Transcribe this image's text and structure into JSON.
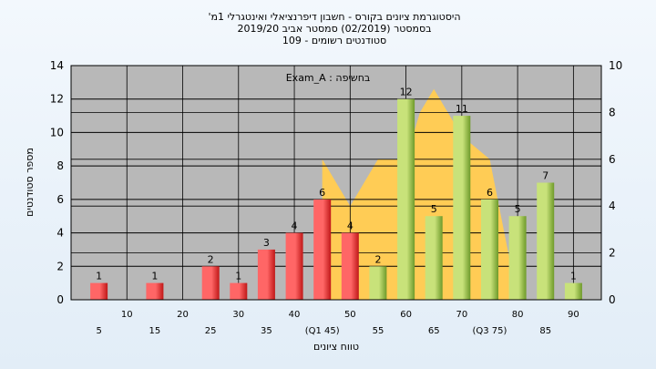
{
  "colors": {
    "plot_bg": "#b8b8b8",
    "grid": "#000000",
    "area_fill": "#ffcc55",
    "red_bar_light": "#ff6666",
    "red_bar_dark": "#c01818",
    "green_bar_light": "#c8e27a",
    "green_bar_dark": "#6e9a2a"
  },
  "chart_data": {
    "type": "bar",
    "title_lines": [
      "היסטוגרמת ציונים בקורס - חשבון דיפרנציאלי ואינטגרלי 1מ'",
      "בסמסטר  (02/2019)  סמסטר אביב 2019/20",
      "סטודנטים רשומים - 109"
    ],
    "annotation": "בחשיפה : Exam_A",
    "xlabel": "טווח ציונים",
    "ylabel": "מספר סטודנטים",
    "ylim": [
      0,
      14
    ],
    "yticks": [
      0,
      2,
      4,
      6,
      8,
      10,
      12,
      14
    ],
    "y2lim": [
      0,
      10
    ],
    "y2ticks": [
      0,
      2,
      4,
      6,
      8,
      10
    ],
    "categories_upper": [
      "10",
      "20",
      "30",
      "40",
      "50",
      "60",
      "70",
      "80",
      "90"
    ],
    "categories_lower": [
      "5",
      "15",
      "25",
      "35",
      "(Q1 45)",
      "55",
      "65",
      "(Q3 75)",
      "85"
    ],
    "bars": [
      {
        "x": 5,
        "value": 1,
        "color": "red"
      },
      {
        "x": 15,
        "value": 1,
        "color": "red"
      },
      {
        "x": 25,
        "value": 2,
        "color": "red"
      },
      {
        "x": 30,
        "value": 1,
        "color": "red"
      },
      {
        "x": 35,
        "value": 3,
        "color": "red"
      },
      {
        "x": 40,
        "value": 4,
        "color": "red"
      },
      {
        "x": 45,
        "value": 6,
        "color": "red"
      },
      {
        "x": 50,
        "value": 4,
        "color": "red"
      },
      {
        "x": 55,
        "value": 2,
        "color": "green"
      },
      {
        "x": 60,
        "value": 12,
        "color": "green"
      },
      {
        "x": 65,
        "value": 5,
        "color": "green"
      },
      {
        "x": 70,
        "value": 11,
        "color": "green"
      },
      {
        "x": 75,
        "value": 6,
        "color": "green"
      },
      {
        "x": 80,
        "value": 5,
        "color": "green"
      },
      {
        "x": 85,
        "value": 7,
        "color": "green"
      },
      {
        "x": 90,
        "value": 1,
        "color": "green"
      }
    ],
    "area_secondary": {
      "axis": "right",
      "points": [
        [
          45,
          0
        ],
        [
          45,
          6
        ],
        [
          50,
          4
        ],
        [
          55,
          6
        ],
        [
          60,
          6
        ],
        [
          62.5,
          8
        ],
        [
          65,
          9
        ],
        [
          70,
          7
        ],
        [
          75,
          6
        ],
        [
          80,
          0
        ]
      ]
    }
  }
}
